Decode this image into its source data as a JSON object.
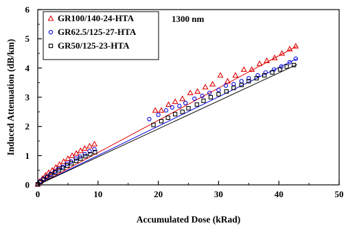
{
  "chart_data": {
    "type": "scatter",
    "title": "",
    "xlabel": "Accumulated Dose (kRad)",
    "ylabel": "Induced Attenuation (dB/km)",
    "xlim": [
      0,
      50
    ],
    "ylim": [
      0,
      6
    ],
    "xticks": [
      "0",
      "10",
      "20",
      "30",
      "40",
      "50"
    ],
    "yticks": [
      "0",
      "1",
      "2",
      "3",
      "4",
      "5",
      "6"
    ],
    "grid": false,
    "legend_position": "top-left",
    "annotation": "1300 nm",
    "series": [
      {
        "name": "GR100/140-24-HTA",
        "marker": "triangle",
        "color": "#e00000",
        "fit": [
          [
            0,
            0.0
          ],
          [
            43,
            4.75
          ]
        ],
        "x": [
          0,
          0.3,
          0.8,
          1.3,
          1.8,
          2.4,
          3.0,
          3.6,
          4.3,
          5.0,
          5.7,
          6.4,
          7.1,
          7.8,
          8.6,
          9.4,
          19.5,
          20.5,
          21.7,
          22.8,
          24.0,
          25.3,
          26.5,
          27.8,
          29.0,
          30.3,
          31.5,
          32.8,
          34.2,
          35.5,
          36.8,
          38.0,
          39.3,
          40.5,
          41.8,
          42.8
        ],
        "y": [
          0.02,
          0.12,
          0.22,
          0.33,
          0.42,
          0.5,
          0.6,
          0.7,
          0.8,
          0.9,
          1.0,
          1.08,
          1.17,
          1.25,
          1.33,
          1.4,
          2.55,
          2.55,
          2.75,
          2.85,
          2.95,
          3.15,
          3.2,
          3.35,
          3.45,
          3.75,
          3.55,
          3.75,
          3.95,
          3.95,
          4.15,
          4.25,
          4.35,
          4.5,
          4.65,
          4.75
        ]
      },
      {
        "name": "GR62.5/125-27-HTA",
        "marker": "circle",
        "color": "#0000e0",
        "fit": [
          [
            0,
            0.0
          ],
          [
            43,
            4.32
          ]
        ],
        "x": [
          0,
          0.4,
          0.9,
          1.5,
          2.1,
          2.8,
          3.4,
          4.1,
          4.8,
          5.5,
          6.3,
          7.0,
          7.8,
          8.6,
          9.4,
          18.5,
          20.0,
          21.3,
          22.3,
          23.5,
          24.5,
          26.0,
          27.3,
          28.5,
          30.0,
          31.2,
          32.5,
          33.8,
          35.0,
          36.5,
          37.8,
          39.2,
          40.4,
          41.8,
          42.8
        ],
        "y": [
          0.02,
          0.12,
          0.2,
          0.28,
          0.37,
          0.45,
          0.55,
          0.62,
          0.72,
          0.8,
          0.9,
          0.97,
          1.05,
          1.15,
          1.22,
          2.25,
          2.4,
          2.55,
          2.65,
          2.7,
          2.8,
          2.95,
          3.05,
          3.15,
          3.25,
          3.4,
          3.45,
          3.55,
          3.65,
          3.75,
          3.85,
          3.95,
          4.05,
          4.2,
          4.32
        ]
      },
      {
        "name": "GR50/125-23-HTA",
        "marker": "square",
        "color": "#000000",
        "fit": [
          [
            0,
            0.0
          ],
          [
            43,
            4.12
          ]
        ],
        "x": [
          0,
          0.5,
          1.0,
          1.6,
          2.2,
          2.9,
          3.5,
          4.2,
          4.9,
          5.6,
          6.4,
          7.1,
          7.9,
          8.7,
          9.5,
          19.2,
          20.5,
          21.6,
          22.8,
          24.0,
          25.0,
          26.4,
          27.5,
          28.7,
          30.0,
          31.3,
          32.5,
          33.8,
          35.0,
          36.3,
          37.6,
          38.9,
          40.2,
          41.3,
          42.5
        ],
        "y": [
          0.02,
          0.1,
          0.18,
          0.26,
          0.34,
          0.42,
          0.5,
          0.58,
          0.66,
          0.74,
          0.82,
          0.9,
          0.98,
          1.05,
          1.12,
          2.05,
          2.18,
          2.3,
          2.42,
          2.5,
          2.62,
          2.75,
          2.88,
          3.0,
          3.1,
          3.2,
          3.32,
          3.42,
          3.55,
          3.65,
          3.75,
          3.85,
          3.95,
          4.05,
          4.1
        ]
      }
    ]
  }
}
